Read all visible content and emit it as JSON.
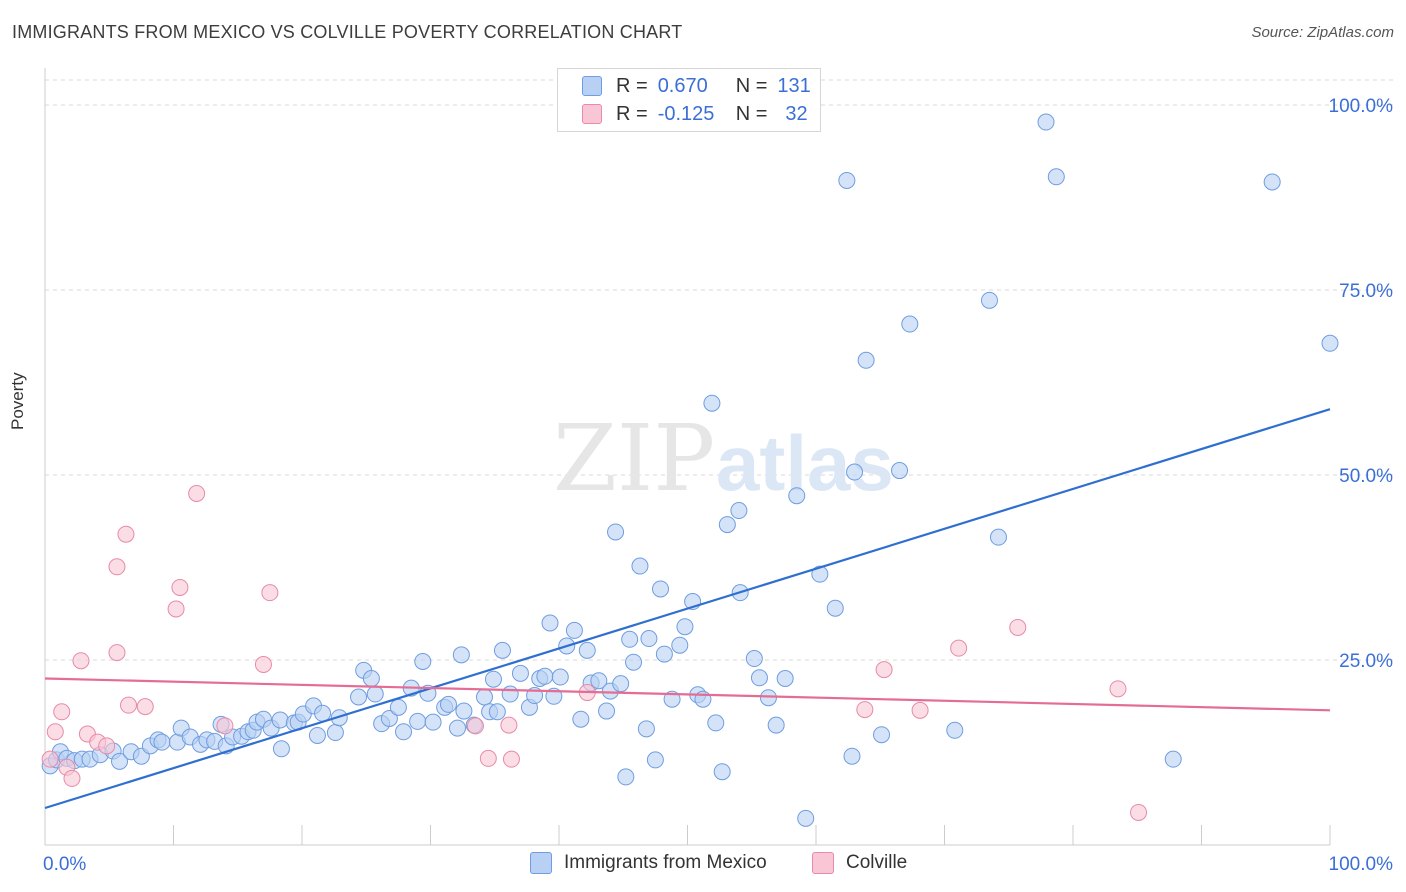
{
  "header": {
    "title": "IMMIGRANTS FROM MEXICO VS COLVILLE POVERTY CORRELATION CHART",
    "source": "Source: ZipAtlas.com"
  },
  "legend": {
    "rows": [
      {
        "r_label": "R =",
        "r_value": "0.670",
        "n_label": "N =",
        "n_value": "131"
      },
      {
        "r_label": "R =",
        "r_value": "-0.125",
        "n_label": "N =",
        "n_value": "32"
      }
    ]
  },
  "bottom_legend": [
    "Immigrants from Mexico",
    "Colville"
  ],
  "watermark": {
    "zip": "ZIP",
    "atlas": "atlas"
  },
  "colors": {
    "blue_fill": "#b8d0f3",
    "blue_stroke": "#6f9de0",
    "blue_line": "#2e6fd0",
    "pink_fill": "#f9c6d5",
    "pink_stroke": "#e88aa8",
    "pink_line": "#e56c93",
    "grid": "#d9d9d9",
    "tick_text": "#3b6fd6"
  },
  "chart_data": {
    "type": "scatter",
    "xlabel": "",
    "ylabel": "Poverty",
    "xlim": [
      0,
      100
    ],
    "ylim": [
      0,
      105
    ],
    "x_tick_labels": [
      "0.0%",
      "100.0%"
    ],
    "y_tick_labels": [
      "25.0%",
      "50.0%",
      "75.0%",
      "100.0%"
    ],
    "y_ticks": [
      25,
      50,
      75,
      100
    ],
    "grid": "horizontal dashed",
    "series": [
      {
        "name": "Immigrants from Mexico",
        "color": "blue",
        "trend": {
          "x": [
            0,
            100
          ],
          "y": [
            5.0,
            58.9
          ]
        },
        "points": [
          [
            0.4,
            10.7
          ],
          [
            0.9,
            11.5
          ],
          [
            1.2,
            12.6
          ],
          [
            1.7,
            11.7
          ],
          [
            2.3,
            11.4
          ],
          [
            2.9,
            11.6
          ],
          [
            3.5,
            11.6
          ],
          [
            4.3,
            12.2
          ],
          [
            5.3,
            12.7
          ],
          [
            5.8,
            11.3
          ],
          [
            6.7,
            12.6
          ],
          [
            7.5,
            12.0
          ],
          [
            8.2,
            13.4
          ],
          [
            8.8,
            14.2
          ],
          [
            9.1,
            13.9
          ],
          [
            10.3,
            13.9
          ],
          [
            10.6,
            15.8
          ],
          [
            11.3,
            14.6
          ],
          [
            12.1,
            13.6
          ],
          [
            12.6,
            14.2
          ],
          [
            13.2,
            14.0
          ],
          [
            13.7,
            16.3
          ],
          [
            14.1,
            13.4
          ],
          [
            14.6,
            14.6
          ],
          [
            15.3,
            14.7
          ],
          [
            15.8,
            15.3
          ],
          [
            16.2,
            15.5
          ],
          [
            16.5,
            16.6
          ],
          [
            17.0,
            17.0
          ],
          [
            17.6,
            15.8
          ],
          [
            18.3,
            16.9
          ],
          [
            18.4,
            13.0
          ],
          [
            19.4,
            16.5
          ],
          [
            19.7,
            16.6
          ],
          [
            20.1,
            17.7
          ],
          [
            20.9,
            18.8
          ],
          [
            21.2,
            14.8
          ],
          [
            21.6,
            17.8
          ],
          [
            22.6,
            15.2
          ],
          [
            22.9,
            17.2
          ],
          [
            24.4,
            20.0
          ],
          [
            24.8,
            23.6
          ],
          [
            25.4,
            22.5
          ],
          [
            25.7,
            20.4
          ],
          [
            26.2,
            16.4
          ],
          [
            26.8,
            17.1
          ],
          [
            27.5,
            18.6
          ],
          [
            27.9,
            15.3
          ],
          [
            28.5,
            21.2
          ],
          [
            29.0,
            16.7
          ],
          [
            29.4,
            24.8
          ],
          [
            29.8,
            20.5
          ],
          [
            30.2,
            16.6
          ],
          [
            31.1,
            18.6
          ],
          [
            31.4,
            19.0
          ],
          [
            32.1,
            15.8
          ],
          [
            32.4,
            25.7
          ],
          [
            32.6,
            18.1
          ],
          [
            33.4,
            16.2
          ],
          [
            34.2,
            20.0
          ],
          [
            34.6,
            18.0
          ],
          [
            34.9,
            22.4
          ],
          [
            35.2,
            18.0
          ],
          [
            35.6,
            26.3
          ],
          [
            36.2,
            20.4
          ],
          [
            37.0,
            23.2
          ],
          [
            37.7,
            18.6
          ],
          [
            38.1,
            20.2
          ],
          [
            38.5,
            22.5
          ],
          [
            38.9,
            22.8
          ],
          [
            39.3,
            30.0
          ],
          [
            39.6,
            20.1
          ],
          [
            40.1,
            22.7
          ],
          [
            40.6,
            26.9
          ],
          [
            41.2,
            29.0
          ],
          [
            41.7,
            17.0
          ],
          [
            42.2,
            26.3
          ],
          [
            42.5,
            21.9
          ],
          [
            43.1,
            22.2
          ],
          [
            43.7,
            18.1
          ],
          [
            44.0,
            20.8
          ],
          [
            44.4,
            42.3
          ],
          [
            44.8,
            21.8
          ],
          [
            45.2,
            9.2
          ],
          [
            45.5,
            27.8
          ],
          [
            45.8,
            24.7
          ],
          [
            46.3,
            37.7
          ],
          [
            46.8,
            15.7
          ],
          [
            47.0,
            27.9
          ],
          [
            47.5,
            11.5
          ],
          [
            47.9,
            34.6
          ],
          [
            48.2,
            25.8
          ],
          [
            48.8,
            19.7
          ],
          [
            49.4,
            27.0
          ],
          [
            49.8,
            29.5
          ],
          [
            50.4,
            32.9
          ],
          [
            50.8,
            20.3
          ],
          [
            51.2,
            19.7
          ],
          [
            51.9,
            59.7
          ],
          [
            52.2,
            16.5
          ],
          [
            52.7,
            9.9
          ],
          [
            53.1,
            43.3
          ],
          [
            54.0,
            45.2
          ],
          [
            54.1,
            34.1
          ],
          [
            55.2,
            25.2
          ],
          [
            55.6,
            22.6
          ],
          [
            56.3,
            19.9
          ],
          [
            56.9,
            16.2
          ],
          [
            57.6,
            22.5
          ],
          [
            58.5,
            47.2
          ],
          [
            59.2,
            3.6
          ],
          [
            60.3,
            36.6
          ],
          [
            61.5,
            32.0
          ],
          [
            62.4,
            89.8
          ],
          [
            62.8,
            12.0
          ],
          [
            63.0,
            50.4
          ],
          [
            63.9,
            65.5
          ],
          [
            65.1,
            14.9
          ],
          [
            66.5,
            50.6
          ],
          [
            67.3,
            70.4
          ],
          [
            70.8,
            15.5
          ],
          [
            73.5,
            73.6
          ],
          [
            74.2,
            41.6
          ],
          [
            77.9,
            97.7
          ],
          [
            78.7,
            90.3
          ],
          [
            87.8,
            11.6
          ],
          [
            95.5,
            89.6
          ],
          [
            100.0,
            67.8
          ]
        ]
      },
      {
        "name": "Colville",
        "color": "pink",
        "trend": {
          "x": [
            0,
            100
          ],
          "y": [
            22.5,
            18.2
          ]
        },
        "points": [
          [
            0.4,
            11.6
          ],
          [
            0.8,
            15.3
          ],
          [
            1.3,
            18.0
          ],
          [
            1.7,
            10.5
          ],
          [
            2.1,
            9.0
          ],
          [
            2.8,
            24.9
          ],
          [
            3.3,
            15.0
          ],
          [
            4.1,
            13.9
          ],
          [
            4.8,
            13.4
          ],
          [
            5.6,
            37.6
          ],
          [
            5.6,
            26.0
          ],
          [
            6.3,
            42.0
          ],
          [
            6.5,
            18.9
          ],
          [
            7.8,
            18.7
          ],
          [
            10.2,
            31.9
          ],
          [
            10.5,
            34.8
          ],
          [
            11.8,
            47.5
          ],
          [
            14.0,
            16.1
          ],
          [
            17.0,
            24.4
          ],
          [
            17.5,
            34.1
          ],
          [
            33.5,
            16.1
          ],
          [
            34.5,
            11.7
          ],
          [
            36.1,
            16.2
          ],
          [
            36.3,
            11.6
          ],
          [
            42.2,
            20.6
          ],
          [
            63.8,
            18.3
          ],
          [
            65.3,
            23.7
          ],
          [
            68.1,
            18.2
          ],
          [
            71.1,
            26.6
          ],
          [
            75.7,
            29.4
          ],
          [
            83.5,
            21.1
          ],
          [
            85.1,
            4.4
          ]
        ]
      }
    ]
  }
}
